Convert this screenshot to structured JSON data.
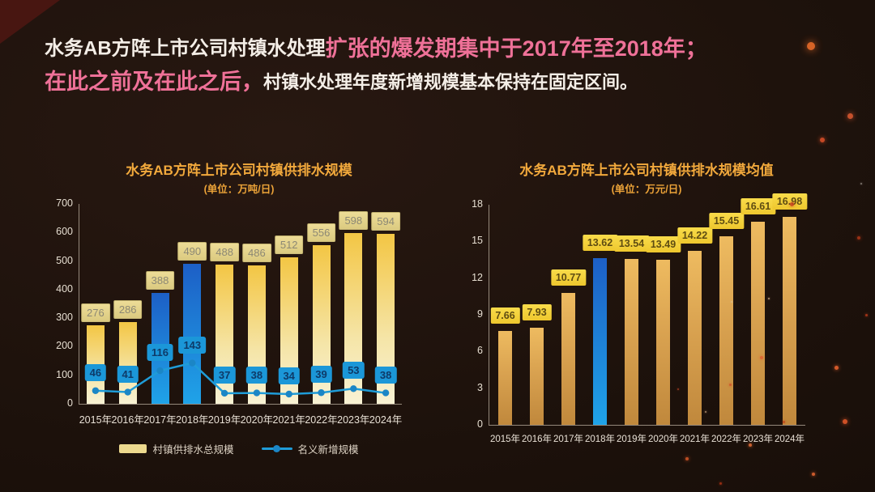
{
  "header": {
    "line1_white": "水务AB方阵上市公司村镇水处理",
    "line1_pink": "扩张的爆发期集中于2017年至2018年；",
    "line2_pink": "在此之前及在此之后，",
    "line2_white": "村镇水处理年度新增规模基本保持在固定区间。"
  },
  "colors": {
    "background": "#1c110b",
    "headline_white": "#f4eee7",
    "headline_pink": "#ef7198",
    "chart_title_gold": "#f2a93c",
    "bar_gold_top": "#f3c644",
    "bar_gold_bottom": "#f8f2d4",
    "bar_highlight_blue_top": "#1d5fc6",
    "bar_highlight_blue_bottom": "#1fa3e8",
    "bar_bronze_top": "#eebb60",
    "bar_bronze_bottom": "#c0883c",
    "line_blue": "#1f9cd8",
    "value_box_khaki": "#e3d28a",
    "value_box_yellow": "#f6d63b",
    "axis_text": "#e6ded1"
  },
  "chart_data": [
    {
      "type": "bar",
      "title": "水务AB方阵上市公司村镇供排水规模",
      "subtitle": "(单位：万吨/日)",
      "categories": [
        "2015年",
        "2016年",
        "2017年",
        "2018年",
        "2019年",
        "2020年",
        "2021年",
        "2022年",
        "2023年",
        "2024年"
      ],
      "series": [
        {
          "name": "村镇供排水总规模",
          "type": "bar",
          "values": [
            276,
            286,
            388,
            490,
            488,
            486,
            512,
            556,
            598,
            594
          ]
        },
        {
          "name": "名义新增规模",
          "type": "line",
          "values": [
            46,
            41,
            116,
            143,
            37,
            38,
            34,
            39,
            53,
            38
          ]
        }
      ],
      "highlight_categories": [
        "2017年",
        "2018年"
      ],
      "ylim": [
        0,
        700
      ],
      "yticks": [
        0,
        100,
        200,
        300,
        400,
        500,
        600,
        700
      ],
      "grid": false,
      "legend_position": "bottom"
    },
    {
      "type": "bar",
      "title": "水务AB方阵上市公司村镇供排水规模均值",
      "subtitle": "(单位：万元/日)",
      "categories": [
        "2015年",
        "2016年",
        "2017年",
        "2018年",
        "2019年",
        "2020年",
        "2021年",
        "2022年",
        "2023年",
        "2024年"
      ],
      "values": [
        7.66,
        7.93,
        10.77,
        13.62,
        13.54,
        13.49,
        14.22,
        15.45,
        16.61,
        16.98
      ],
      "highlight_categories": [
        "2018年"
      ],
      "ylim": [
        0,
        18
      ],
      "yticks": [
        0,
        3,
        6,
        9,
        12,
        15,
        18
      ],
      "grid": false,
      "legend_position": "none"
    }
  ]
}
